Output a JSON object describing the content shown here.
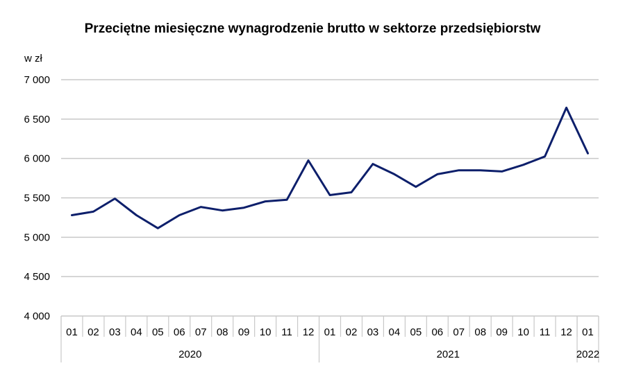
{
  "chart_data": {
    "type": "line",
    "title": "Przeciętne miesięczne wynagrodzenie brutto w sektorze przedsiębiorstw",
    "ylabel": "w zł",
    "ylim": [
      4000,
      7000
    ],
    "yticks": [
      "7 000",
      "6 500",
      "6 000",
      "5 500",
      "5 000",
      "4 500",
      "4 000"
    ],
    "ytick_values": [
      7000,
      6500,
      6000,
      5500,
      5000,
      4500,
      4000
    ],
    "grid": true,
    "categories": [
      "01",
      "02",
      "03",
      "04",
      "05",
      "06",
      "07",
      "08",
      "09",
      "10",
      "11",
      "12",
      "01",
      "02",
      "03",
      "04",
      "05",
      "06",
      "07",
      "08",
      "09",
      "10",
      "11",
      "12",
      "01"
    ],
    "years": [
      {
        "label": "2020",
        "count": 12
      },
      {
        "label": "2021",
        "count": 12
      },
      {
        "label": "2022",
        "count": 1
      }
    ],
    "series": [
      {
        "color": "#0d1f6b",
        "values": [
          5280,
          5325,
          5490,
          5280,
          5115,
          5280,
          5385,
          5340,
          5375,
          5455,
          5475,
          5975,
          5535,
          5570,
          5930,
          5800,
          5640,
          5800,
          5850,
          5850,
          5835,
          5920,
          6025,
          6645,
          6065
        ]
      }
    ]
  }
}
